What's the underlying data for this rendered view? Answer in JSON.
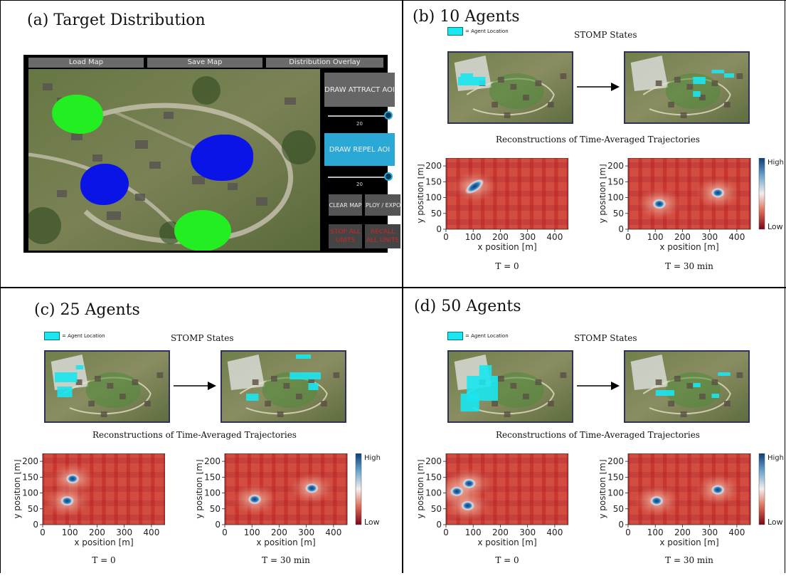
{
  "panels": {
    "a": {
      "title": "(a) Target Distribution"
    },
    "b": {
      "title": "(b) 10 Agents"
    },
    "c": {
      "title": "(c) 25 Agents"
    },
    "d": {
      "title": "(d) 50 Agents"
    }
  },
  "common": {
    "legend_text": "= Agent Location",
    "stomp_title": "STOMP States",
    "recon_title": "Reconstructions of Time-Averaged Trajectories",
    "xlabel": "x position [m]",
    "ylabel": "y position [m]",
    "colorbar_high": "High",
    "colorbar_low": "Low",
    "t0": "T = 0",
    "t30": "T = 30 min",
    "xticks": [
      "0",
      "100",
      "200",
      "300",
      "400"
    ],
    "yticks": [
      "0",
      "50",
      "100",
      "150",
      "200"
    ]
  },
  "app": {
    "top_buttons": [
      "Load Map",
      "Save Map",
      "Distribution Overlay"
    ],
    "draw_attract": "DRAW ATTRACT AOI",
    "attract_value": "20",
    "draw_repel": "DRAW REPEL AOI",
    "repel_value": "20",
    "clear_map": "CLEAR MAP",
    "deploy_export": "DEPLOY / EXPORT",
    "stop_all": "STOP ALL UNITS",
    "recall_all": "RECALL ALL UNITS",
    "colors": {
      "attract": "#22ee22",
      "repel": "#0a14e6",
      "accent": "#2aa9d6"
    }
  },
  "chart_data": [
    {
      "type": "heatmap",
      "panel": "b",
      "time": "T = 0",
      "xlim": [
        0,
        450
      ],
      "ylim": [
        0,
        225
      ],
      "hotspots": [
        {
          "x": 105,
          "y": 135,
          "angle": "diagonal"
        }
      ]
    },
    {
      "type": "heatmap",
      "panel": "b",
      "time": "T = 30 min",
      "xlim": [
        0,
        450
      ],
      "ylim": [
        0,
        225
      ],
      "hotspots": [
        {
          "x": 115,
          "y": 80
        },
        {
          "x": 330,
          "y": 115
        }
      ]
    },
    {
      "type": "heatmap",
      "panel": "c",
      "time": "T = 0",
      "xlim": [
        0,
        450
      ],
      "ylim": [
        0,
        225
      ],
      "hotspots": [
        {
          "x": 110,
          "y": 145
        },
        {
          "x": 90,
          "y": 75
        }
      ]
    },
    {
      "type": "heatmap",
      "panel": "c",
      "time": "T = 30 min",
      "xlim": [
        0,
        450
      ],
      "ylim": [
        0,
        225
      ],
      "hotspots": [
        {
          "x": 110,
          "y": 80
        },
        {
          "x": 320,
          "y": 115
        }
      ]
    },
    {
      "type": "heatmap",
      "panel": "d",
      "time": "T = 0",
      "xlim": [
        0,
        450
      ],
      "ylim": [
        0,
        225
      ],
      "hotspots": [
        {
          "x": 40,
          "y": 105
        },
        {
          "x": 85,
          "y": 130
        },
        {
          "x": 80,
          "y": 60
        }
      ]
    },
    {
      "type": "heatmap",
      "panel": "d",
      "time": "T = 30 min",
      "xlim": [
        0,
        450
      ],
      "ylim": [
        0,
        225
      ],
      "hotspots": [
        {
          "x": 105,
          "y": 75
        },
        {
          "x": 330,
          "y": 110
        }
      ]
    }
  ]
}
